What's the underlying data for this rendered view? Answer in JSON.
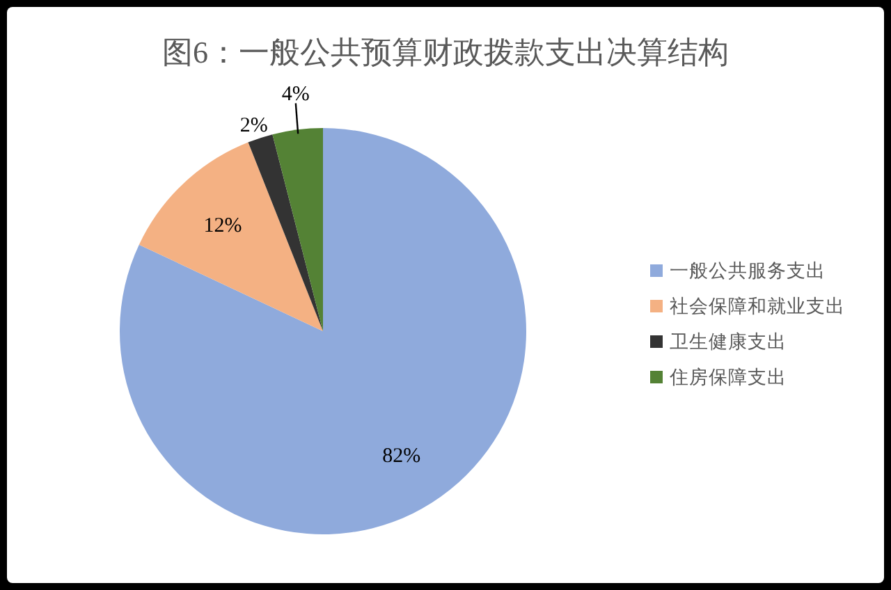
{
  "chart_data": {
    "type": "pie",
    "title": "图6：一般公共预算财政拨款支出决算结构",
    "categories": [
      "一般公共服务支出",
      "社会保障和就业支出",
      "卫生健康支出",
      "住房保障支出"
    ],
    "values": [
      82,
      12,
      2,
      4
    ],
    "colors": [
      "#8faadc",
      "#f4b183",
      "#333333",
      "#548235"
    ],
    "value_labels": [
      "82%",
      "12%",
      "2%",
      "4%"
    ],
    "legend": "right"
  }
}
